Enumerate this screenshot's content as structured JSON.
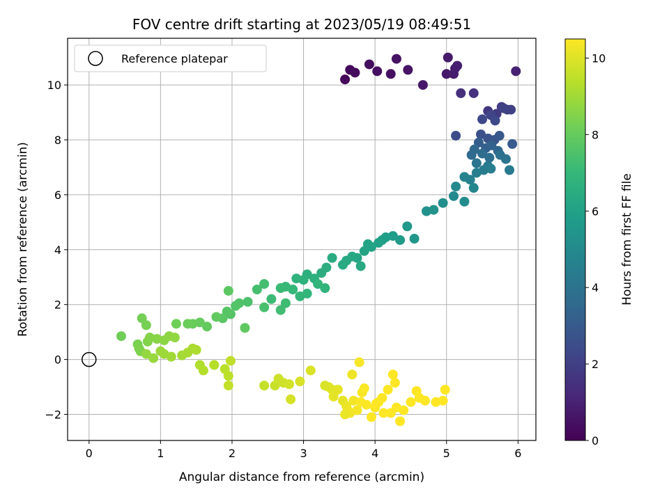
{
  "chart_data": {
    "type": "scatter",
    "title": "FOV centre drift starting at 2023/05/19 08:49:51",
    "xlabel": "Angular distance from reference (arcmin)",
    "ylabel": "Rotation from reference (arcmin)",
    "xlim": [
      -0.3,
      6.25
    ],
    "ylim": [
      -2.95,
      11.7
    ],
    "x_ticks": [
      0,
      1,
      2,
      3,
      4,
      5,
      6
    ],
    "y_ticks": [
      -2,
      0,
      2,
      4,
      6,
      8,
      10
    ],
    "grid": true,
    "legend": {
      "placement": "top-left",
      "entries": [
        "Reference platepar"
      ]
    },
    "reference_point": {
      "x": 0,
      "y": 0,
      "label": "Reference platepar"
    },
    "colorbar": {
      "label": "Hours from first FF file",
      "range": [
        0,
        10.5
      ],
      "ticks": [
        0,
        2,
        4,
        6,
        8,
        10
      ],
      "colormap": "viridis"
    },
    "colormap_stops": [
      "#440154",
      "#482878",
      "#3e4989",
      "#31688e",
      "#26828e",
      "#1f9e89",
      "#35b779",
      "#6ece58",
      "#b5de2b",
      "#fde725"
    ],
    "points": [
      [
        3.58,
        10.2,
        0.2
      ],
      [
        3.65,
        10.55,
        0.25
      ],
      [
        3.72,
        10.45,
        0.3
      ],
      [
        3.92,
        10.75,
        0.35
      ],
      [
        4.03,
        10.5,
        0.4
      ],
      [
        4.22,
        10.4,
        0.45
      ],
      [
        4.3,
        10.95,
        0.5
      ],
      [
        4.46,
        10.55,
        0.55
      ],
      [
        4.67,
        10.0,
        0.65
      ],
      [
        5.0,
        10.4,
        0.7
      ],
      [
        5.02,
        11.0,
        0.75
      ],
      [
        5.1,
        10.4,
        0.8
      ],
      [
        5.12,
        10.6,
        0.85
      ],
      [
        5.15,
        10.7,
        0.9
      ],
      [
        5.97,
        10.5,
        1.0
      ],
      [
        5.2,
        9.7,
        1.4
      ],
      [
        5.38,
        9.7,
        1.5
      ],
      [
        5.58,
        9.05,
        1.7
      ],
      [
        5.7,
        8.95,
        1.8
      ],
      [
        5.77,
        9.2,
        1.9
      ],
      [
        5.85,
        9.1,
        2.0
      ],
      [
        5.9,
        9.1,
        2.05
      ],
      [
        5.8,
        9.15,
        2.1
      ],
      [
        5.62,
        8.9,
        2.2
      ],
      [
        5.5,
        8.75,
        2.3
      ],
      [
        5.68,
        8.7,
        2.35
      ],
      [
        5.13,
        8.15,
        2.5
      ],
      [
        5.48,
        8.2,
        2.6
      ],
      [
        5.58,
        8.05,
        2.7
      ],
      [
        5.67,
        8.0,
        2.8
      ],
      [
        5.74,
        8.15,
        2.9
      ],
      [
        5.92,
        7.85,
        3.0
      ],
      [
        5.45,
        7.9,
        3.1
      ],
      [
        5.55,
        7.7,
        3.2
      ],
      [
        5.63,
        7.8,
        3.3
      ],
      [
        5.72,
        7.6,
        3.4
      ],
      [
        5.39,
        7.65,
        3.5
      ],
      [
        5.35,
        7.45,
        3.6
      ],
      [
        5.5,
        7.5,
        3.7
      ],
      [
        5.6,
        7.35,
        3.8
      ],
      [
        5.75,
        7.45,
        3.9
      ],
      [
        5.83,
        7.3,
        4.0
      ],
      [
        5.42,
        7.15,
        4.1
      ],
      [
        5.58,
        7.05,
        4.2
      ],
      [
        5.88,
        6.9,
        4.3
      ],
      [
        5.52,
        6.9,
        4.4
      ],
      [
        5.62,
        6.95,
        4.5
      ],
      [
        5.42,
        6.8,
        4.55
      ],
      [
        5.33,
        6.55,
        4.6
      ],
      [
        5.25,
        6.65,
        4.7
      ],
      [
        5.38,
        6.25,
        4.8
      ],
      [
        5.13,
        6.3,
        4.9
      ],
      [
        5.1,
        5.95,
        5.0
      ],
      [
        5.25,
        5.75,
        5.1
      ],
      [
        4.95,
        5.7,
        5.2
      ],
      [
        4.72,
        5.4,
        5.3
      ],
      [
        4.82,
        5.45,
        5.35
      ],
      [
        4.55,
        4.4,
        5.5
      ],
      [
        4.45,
        4.85,
        5.6
      ],
      [
        4.35,
        4.35,
        5.7
      ],
      [
        4.25,
        4.5,
        5.8
      ],
      [
        4.15,
        4.45,
        5.85
      ],
      [
        4.1,
        4.35,
        5.9
      ],
      [
        4.05,
        4.25,
        5.95
      ],
      [
        3.95,
        4.1,
        6.0
      ],
      [
        3.9,
        4.2,
        6.05
      ],
      [
        3.85,
        3.95,
        6.1
      ],
      [
        3.75,
        3.7,
        6.2
      ],
      [
        3.68,
        3.75,
        6.25
      ],
      [
        3.6,
        3.6,
        6.3
      ],
      [
        3.8,
        3.4,
        6.35
      ],
      [
        3.55,
        3.45,
        6.4
      ],
      [
        3.4,
        3.7,
        6.45
      ],
      [
        3.32,
        3.35,
        6.5
      ],
      [
        3.25,
        3.15,
        6.55
      ],
      [
        3.05,
        3.1,
        6.6
      ],
      [
        3.15,
        2.95,
        6.65
      ],
      [
        3.0,
        2.9,
        6.7
      ],
      [
        2.9,
        2.95,
        6.75
      ],
      [
        3.3,
        2.6,
        6.8
      ],
      [
        3.2,
        2.75,
        6.85
      ],
      [
        3.05,
        2.4,
        6.9
      ],
      [
        2.95,
        2.3,
        6.95
      ],
      [
        2.85,
        2.55,
        7.0
      ],
      [
        2.75,
        2.65,
        7.05
      ],
      [
        2.68,
        2.6,
        7.1
      ],
      [
        2.55,
        2.2,
        7.15
      ],
      [
        2.75,
        2.05,
        7.2
      ],
      [
        2.68,
        1.8,
        7.25
      ],
      [
        2.45,
        2.75,
        7.3
      ],
      [
        2.35,
        2.55,
        7.35
      ],
      [
        2.45,
        1.9,
        7.4
      ],
      [
        2.22,
        2.1,
        7.5
      ],
      [
        2.1,
        2.05,
        7.55
      ],
      [
        2.05,
        1.95,
        7.6
      ],
      [
        1.98,
        1.65,
        7.65
      ],
      [
        1.93,
        1.75,
        7.7
      ],
      [
        1.87,
        1.5,
        7.75
      ],
      [
        1.95,
        2.5,
        7.8
      ],
      [
        2.18,
        1.15,
        7.85
      ],
      [
        1.78,
        1.55,
        7.9
      ],
      [
        1.65,
        1.2,
        7.95
      ],
      [
        1.55,
        1.35,
        8.0
      ],
      [
        1.45,
        1.3,
        8.05
      ],
      [
        1.38,
        1.3,
        8.1
      ],
      [
        1.22,
        1.3,
        8.15
      ],
      [
        0.45,
        0.85,
        8.2
      ],
      [
        0.74,
        1.5,
        8.25
      ],
      [
        0.8,
        1.25,
        8.3
      ],
      [
        0.68,
        0.55,
        8.35
      ],
      [
        0.7,
        0.4,
        8.4
      ],
      [
        0.72,
        0.3,
        8.45
      ],
      [
        0.82,
        0.65,
        8.5
      ],
      [
        0.85,
        0.8,
        8.55
      ],
      [
        0.95,
        0.75,
        8.6
      ],
      [
        1.05,
        0.7,
        8.65
      ],
      [
        1.12,
        0.85,
        8.7
      ],
      [
        1.2,
        0.8,
        8.75
      ],
      [
        0.8,
        0.2,
        8.8
      ],
      [
        0.9,
        0.05,
        8.85
      ],
      [
        1.0,
        0.3,
        8.9
      ],
      [
        1.05,
        0.2,
        8.95
      ],
      [
        1.15,
        0.1,
        9.0
      ],
      [
        1.3,
        0.15,
        9.05
      ],
      [
        1.38,
        0.25,
        9.1
      ],
      [
        1.45,
        0.4,
        9.15
      ],
      [
        1.5,
        0.35,
        9.2
      ],
      [
        1.55,
        -0.2,
        9.25
      ],
      [
        1.6,
        -0.4,
        9.3
      ],
      [
        1.75,
        -0.2,
        9.35
      ],
      [
        1.9,
        -0.35,
        9.4
      ],
      [
        1.95,
        -0.6,
        9.45
      ],
      [
        1.98,
        -0.05,
        9.5
      ],
      [
        1.95,
        -0.95,
        9.55
      ],
      [
        2.45,
        -0.95,
        9.6
      ],
      [
        2.6,
        -0.95,
        9.65
      ],
      [
        2.65,
        -0.7,
        9.7
      ],
      [
        2.72,
        -0.85,
        9.75
      ],
      [
        2.8,
        -0.9,
        9.8
      ],
      [
        2.82,
        -1.45,
        9.85
      ],
      [
        2.95,
        -0.8,
        9.9
      ],
      [
        3.1,
        -0.4,
        9.95
      ],
      [
        3.35,
        -1.0,
        10.0
      ],
      [
        3.4,
        -1.1,
        10.05
      ],
      [
        3.48,
        -1.1,
        10.1
      ],
      [
        3.55,
        -1.5,
        10.15
      ],
      [
        3.6,
        -1.7,
        10.2
      ],
      [
        3.62,
        -1.85,
        10.25
      ],
      [
        3.7,
        -1.5,
        10.3
      ],
      [
        3.75,
        -1.85,
        10.35
      ],
      [
        3.82,
        -1.2,
        10.4
      ],
      [
        3.88,
        -1.65,
        10.45
      ],
      [
        3.95,
        -2.1,
        10.5
      ],
      [
        4.0,
        -1.75,
        10.5
      ],
      [
        4.05,
        -1.55,
        10.5
      ],
      [
        4.1,
        -1.4,
        10.5
      ],
      [
        4.22,
        -1.95,
        10.5
      ],
      [
        4.25,
        -0.55,
        10.5
      ],
      [
        4.3,
        -1.75,
        10.5
      ],
      [
        4.35,
        -2.25,
        10.5
      ],
      [
        4.4,
        -1.85,
        10.5
      ],
      [
        4.5,
        -1.55,
        10.5
      ],
      [
        4.58,
        -1.15,
        10.5
      ],
      [
        4.62,
        -1.4,
        10.5
      ],
      [
        4.7,
        -1.5,
        10.5
      ],
      [
        4.85,
        -1.55,
        10.5
      ],
      [
        4.95,
        -1.5,
        10.5
      ],
      [
        4.98,
        -1.1,
        10.5
      ],
      [
        3.78,
        -0.1,
        10.4
      ],
      [
        3.65,
        -1.95,
        10.3
      ],
      [
        3.58,
        -2.0,
        10.2
      ],
      [
        3.8,
        -1.55,
        10.45
      ],
      [
        4.18,
        -1.1,
        10.5
      ],
      [
        4.28,
        -0.85,
        10.5
      ],
      [
        3.42,
        -1.35,
        10.1
      ],
      [
        3.3,
        -0.95,
        9.95
      ],
      [
        3.68,
        -0.55,
        10.25
      ],
      [
        3.85,
        -1.05,
        10.45
      ],
      [
        4.12,
        -1.95,
        10.5
      ],
      [
        4.02,
        -1.6,
        10.5
      ]
    ]
  }
}
